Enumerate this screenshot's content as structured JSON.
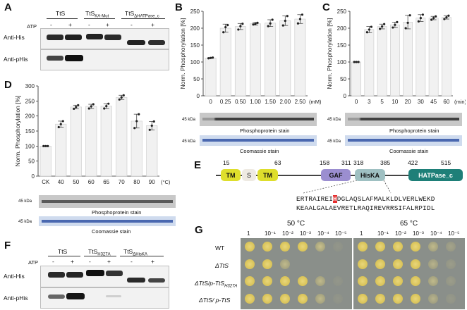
{
  "panelA": {
    "letter": "A",
    "atp": "ATP",
    "minus": "-",
    "plus": "+",
    "col1": "TtS",
    "col2": "TtS",
    "col2sub": "KA-Mut",
    "col3": "TtS",
    "col3sub": "ΔHATPase_c",
    "row1": "Anti-His",
    "row2": "Anti-pHis"
  },
  "panelB": {
    "letter": "B",
    "ylabel": "Norm. Phosphorylation [%]",
    "unit": "(mM)",
    "mw1": "45 kDa",
    "mw2": "45 kDa",
    "stain1": "Phosphoprotein stain",
    "stain2": "Coomassie stain"
  },
  "panelC": {
    "letter": "C",
    "ylabel": "Norm. Phosphorylation [%]",
    "unit": "(min)",
    "mw1": "45 kDa",
    "mw2": "45 kDa",
    "stain1": "Phosphoprotein stain",
    "stain2": "Coomassie stain"
  },
  "panelD": {
    "letter": "D",
    "ylabel": "Norm. Phosphorylation [%]",
    "unit": "(°C)",
    "mw1": "45 kDa",
    "mw2": "45 kDa",
    "stain1": "Phosphoprotein stain",
    "stain2": "Coomassie stain"
  },
  "panelE": {
    "letter": "E",
    "n15": "15",
    "n63": "63",
    "n158": "158",
    "n311": "311",
    "n318": "318",
    "n385": "385",
    "n422": "422",
    "n515": "515",
    "tm1": "TM",
    "s": "S",
    "tm2": "TM",
    "gaf": "GAF",
    "hiska": "HisKA",
    "hatpase": "HATPase_c",
    "seq1a": "ERTRAIREI",
    "seq1h": "H",
    "seq1b": "DGLAQSLAFMALKLDLVERLWEKD",
    "seq2": "KEAALGALAEVRETLRAQIREVRRSIFALRPIDL"
  },
  "panelF": {
    "letter": "F",
    "atp": "ATP",
    "minus": "-",
    "plus": "+",
    "col1": "TtS",
    "col2": "TtS",
    "col2sub": "H327A",
    "col3": "TtS",
    "col3sub": "ΔHisKA",
    "row1": "Anti-His",
    "row2": "Anti-pHis"
  },
  "panelG": {
    "letter": "G",
    "temp1": "50 °C",
    "temp2": "65 °C",
    "dil": [
      "1",
      "10⁻¹",
      "10⁻²",
      "10⁻³",
      "10⁻⁴",
      "10⁻⁵"
    ],
    "rows": [
      "WT",
      "ΔTtS",
      "ΔTtS/p-TtS",
      "ΔTtS/ p-TtS"
    ],
    "row3sub": "H327A"
  },
  "chart_data": [
    {
      "type": "bar",
      "panel": "B",
      "ylabel": "Norm. Phosphorylation [%]",
      "xlabel": "(mM)",
      "ylim": [
        0,
        250
      ],
      "yticks": [
        0,
        50,
        100,
        150,
        200,
        250
      ],
      "categories": [
        "0",
        "0.25",
        "0.50",
        "1.00",
        "1.50",
        "2.00",
        "2.50"
      ],
      "values": [
        112,
        200,
        205,
        213,
        215,
        222,
        227
      ],
      "errors": [
        1,
        12,
        9,
        4,
        10,
        14,
        13
      ],
      "points": [
        [
          111,
          112,
          113
        ],
        [
          188,
          203,
          209
        ],
        [
          196,
          206,
          213
        ],
        [
          211,
          213,
          216
        ],
        [
          206,
          214,
          225
        ],
        [
          208,
          222,
          236
        ],
        [
          214,
          227,
          240
        ]
      ]
    },
    {
      "type": "bar",
      "panel": "C",
      "ylabel": "Norm. Phosphorylation [%]",
      "xlabel": "(min)",
      "ylim": [
        0,
        250
      ],
      "yticks": [
        0,
        50,
        100,
        150,
        200,
        250
      ],
      "categories": [
        "0",
        "3",
        "5",
        "10",
        "20",
        "30",
        "45",
        "60"
      ],
      "values": [
        100,
        196,
        205,
        210,
        218,
        230,
        230,
        232
      ],
      "errors": [
        0,
        9,
        7,
        8,
        20,
        10,
        5,
        5
      ],
      "points": [
        [
          100,
          100,
          100
        ],
        [
          188,
          196,
          204
        ],
        [
          198,
          205,
          212
        ],
        [
          202,
          210,
          218
        ],
        [
          200,
          216,
          238
        ],
        [
          220,
          230,
          240
        ],
        [
          225,
          230,
          235
        ],
        [
          227,
          232,
          237
        ]
      ]
    },
    {
      "type": "bar",
      "panel": "D",
      "ylabel": "Norm. Phosphorylation [%]",
      "xlabel": "(°C)",
      "ylim": [
        0,
        300
      ],
      "yticks": [
        0,
        50,
        100,
        150,
        200,
        250,
        300
      ],
      "categories": [
        "CK",
        "40",
        "50",
        "60",
        "65",
        "70",
        "80",
        "90"
      ],
      "values": [
        100,
        173,
        230,
        232,
        233,
        262,
        183,
        168
      ],
      "errors": [
        0,
        10,
        6,
        7,
        8,
        7,
        23,
        14
      ],
      "points": [
        [
          100,
          100,
          100
        ],
        [
          163,
          173,
          183
        ],
        [
          224,
          230,
          236
        ],
        [
          225,
          232,
          239
        ],
        [
          225,
          233,
          241
        ],
        [
          255,
          262,
          269
        ],
        [
          160,
          183,
          206
        ],
        [
          154,
          168,
          182
        ]
      ]
    }
  ]
}
